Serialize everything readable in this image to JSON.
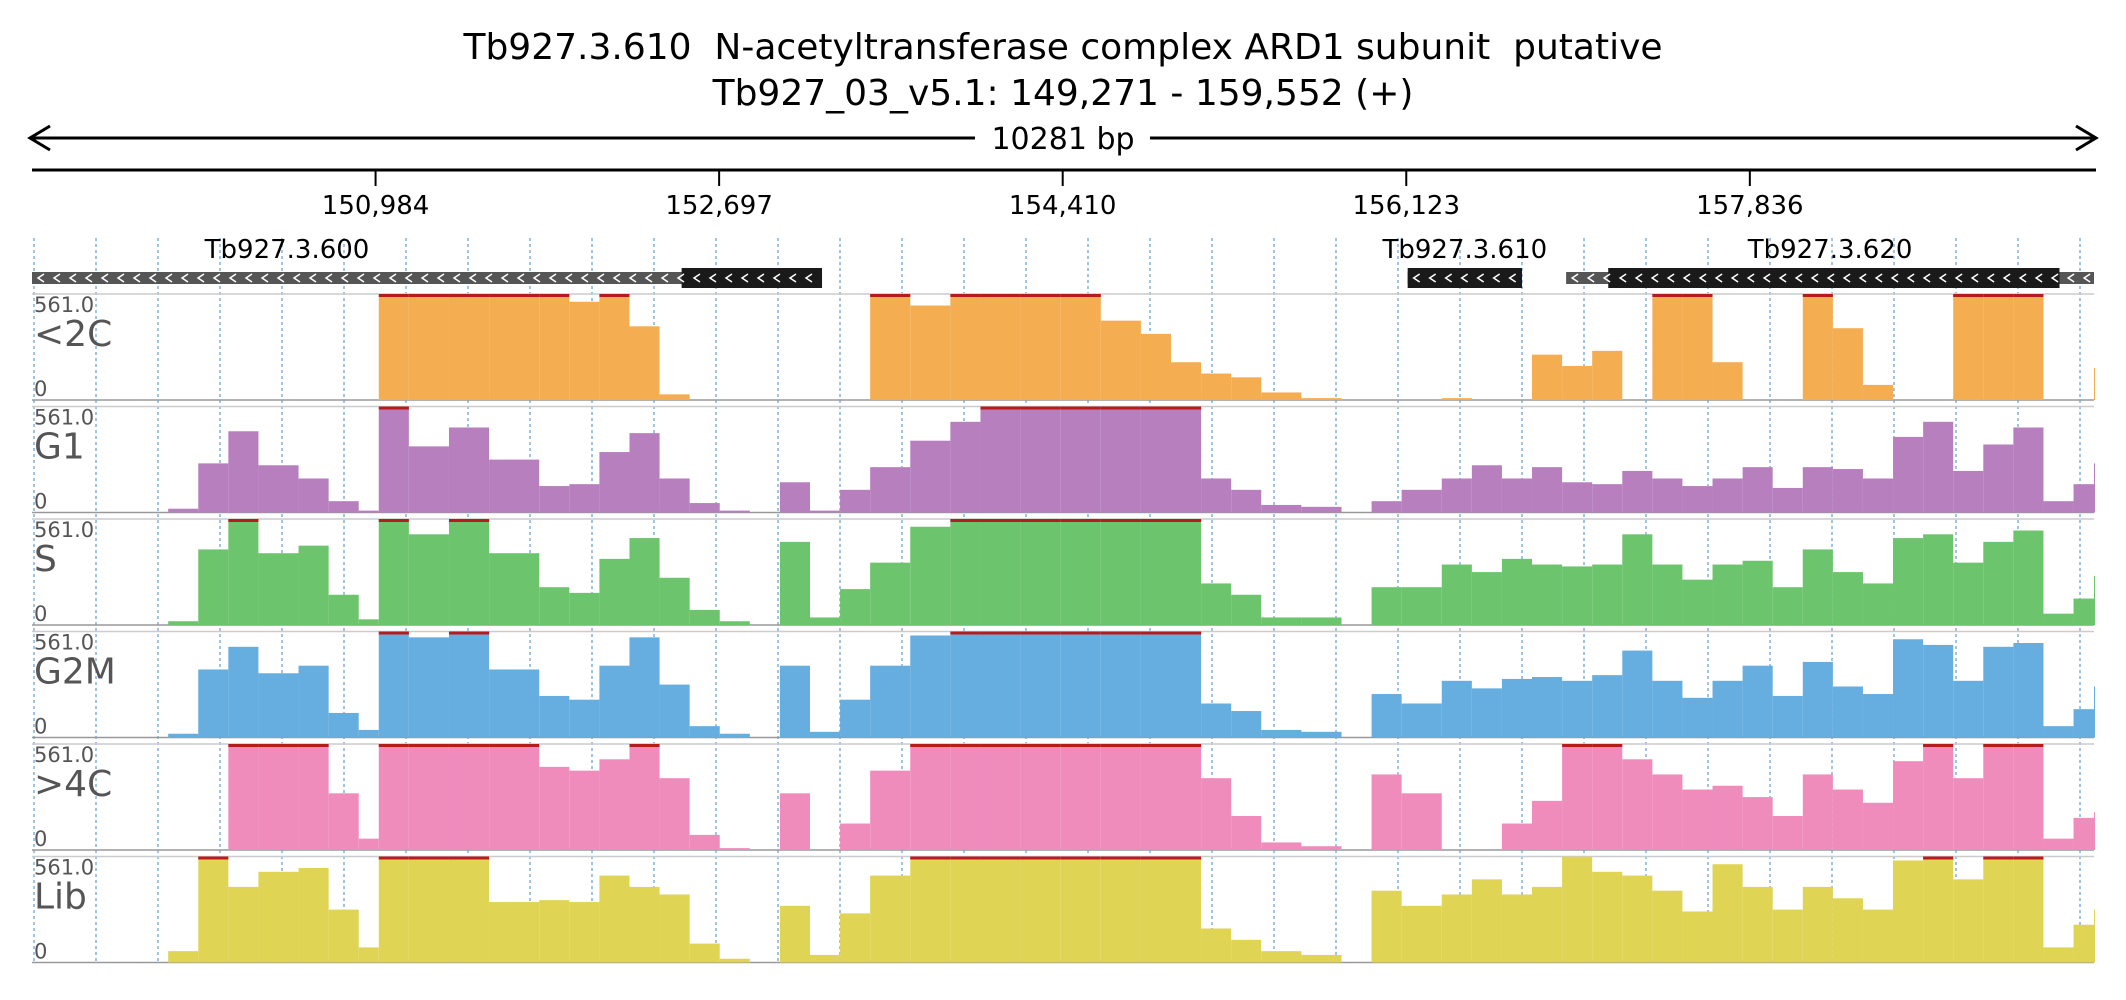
{
  "title": {
    "line1": "Tb927.3.610  N-acetyltransferase complex ARD1 subunit  putative",
    "line2": "Tb927_03_v5.1: 149,271 - 159,552 (+)"
  },
  "span_label": "10281 bp",
  "colors": {
    "<2C": "#f5ad52",
    "G1": "#b87fbf",
    "S": "#6cc46c",
    "G2M": "#66ade0",
    "4C": "#ef8cbc",
    "Lib": "#dfd454",
    "clip": "#b71c1c",
    "gene_body": "#1a1a1a",
    "gene_light": "#555555",
    "grid": "#7fb2e0"
  },
  "chart_data": {
    "type": "area",
    "region": {
      "chrom": "Tb927_03_v5.1",
      "start": 149271,
      "end": 159552,
      "strand": "+"
    },
    "x_ticks": [
      {
        "value": 150984,
        "label": "150,984"
      },
      {
        "value": 152697,
        "label": "152,697"
      },
      {
        "value": 154410,
        "label": "154,410"
      },
      {
        "value": 156123,
        "label": "156,123"
      },
      {
        "value": 157836,
        "label": "157,836"
      }
    ],
    "ylim": [
      0,
      561.0
    ],
    "y_max_label": "561.0",
    "y_min_label": "0",
    "genes": [
      {
        "name": "Tb927.3.600",
        "start": 149271,
        "end": 153210,
        "strand": "-",
        "cds_start": 152510,
        "cds_end": 153210,
        "label": "Tb927.3.600"
      },
      {
        "name": "Tb927.3.610",
        "start": 156130,
        "end": 156700,
        "strand": "-",
        "cds_start": 156130,
        "cds_end": 156700,
        "label": "Tb927.3.610"
      },
      {
        "name": "Tb927.3.620",
        "start": 156920,
        "end": 159552,
        "strand": "-",
        "cds_start": 157130,
        "cds_end": 159380,
        "label": "Tb927.3.620"
      }
    ],
    "x": [
      149271,
      149400,
      149550,
      149700,
      149950,
      150100,
      150250,
      150400,
      150600,
      150750,
      150900,
      151000,
      151150,
      151350,
      151550,
      151800,
      151950,
      152100,
      152250,
      152400,
      152550,
      152700,
      152850,
      153000,
      153150,
      153300,
      153450,
      153650,
      153850,
      154000,
      154200,
      154400,
      154600,
      154800,
      154950,
      155100,
      155250,
      155400,
      155600,
      155800,
      155950,
      156100,
      156300,
      156450,
      156600,
      156750,
      156900,
      157050,
      157200,
      157350,
      157500,
      157650,
      157800,
      157950,
      158100,
      158250,
      158400,
      158550,
      158700,
      158850,
      159000,
      159150,
      159300,
      159450,
      159552
    ],
    "series": [
      {
        "name": "<2C",
        "values": [
          0,
          0,
          0,
          0,
          0,
          0,
          0,
          0,
          0,
          0,
          0,
          561,
          561,
          561,
          561,
          561,
          520,
          561,
          390,
          30,
          0,
          0,
          0,
          0,
          0,
          0,
          561,
          500,
          561,
          561,
          561,
          561,
          420,
          350,
          200,
          140,
          120,
          40,
          10,
          0,
          0,
          0,
          10,
          0,
          0,
          240,
          180,
          260,
          0,
          561,
          561,
          200,
          0,
          0,
          561,
          380,
          80,
          0,
          0,
          561,
          561,
          561,
          0,
          0,
          170
        ]
      },
      {
        "name": "G1",
        "values": [
          0,
          0,
          0,
          0,
          20,
          260,
          430,
          250,
          180,
          60,
          10,
          561,
          350,
          450,
          280,
          140,
          150,
          320,
          420,
          180,
          50,
          10,
          0,
          160,
          10,
          120,
          240,
          380,
          480,
          561,
          561,
          561,
          561,
          561,
          561,
          180,
          120,
          40,
          30,
          0,
          60,
          120,
          180,
          250,
          180,
          240,
          160,
          150,
          220,
          180,
          140,
          180,
          240,
          130,
          240,
          230,
          180,
          400,
          480,
          220,
          360,
          450,
          60,
          150,
          260
        ]
      },
      {
        "name": "S",
        "values": [
          0,
          0,
          0,
          0,
          20,
          400,
          561,
          380,
          420,
          160,
          30,
          561,
          480,
          561,
          380,
          200,
          170,
          350,
          460,
          250,
          80,
          20,
          0,
          440,
          40,
          190,
          330,
          520,
          561,
          561,
          561,
          561,
          561,
          561,
          561,
          220,
          160,
          40,
          40,
          0,
          200,
          200,
          320,
          280,
          350,
          320,
          310,
          320,
          480,
          320,
          240,
          320,
          340,
          200,
          400,
          280,
          220,
          460,
          480,
          330,
          440,
          500,
          60,
          140,
          260
        ]
      },
      {
        "name": "G2M",
        "values": [
          0,
          0,
          0,
          0,
          20,
          360,
          480,
          340,
          380,
          130,
          40,
          561,
          530,
          561,
          360,
          220,
          200,
          380,
          530,
          280,
          60,
          20,
          0,
          380,
          30,
          200,
          380,
          540,
          561,
          561,
          561,
          561,
          561,
          561,
          561,
          180,
          140,
          40,
          30,
          0,
          230,
          180,
          300,
          260,
          310,
          320,
          300,
          330,
          460,
          300,
          210,
          300,
          380,
          220,
          400,
          270,
          230,
          520,
          490,
          300,
          480,
          500,
          60,
          150,
          270
        ]
      },
      {
        "name": ">4C",
        "values": [
          0,
          0,
          0,
          0,
          0,
          0,
          561,
          561,
          561,
          300,
          60,
          561,
          561,
          561,
          561,
          440,
          420,
          480,
          561,
          380,
          80,
          10,
          0,
          300,
          0,
          140,
          420,
          561,
          561,
          561,
          561,
          561,
          561,
          561,
          561,
          380,
          180,
          40,
          20,
          0,
          400,
          300,
          0,
          0,
          140,
          260,
          561,
          561,
          480,
          400,
          320,
          340,
          280,
          180,
          400,
          320,
          250,
          470,
          561,
          380,
          561,
          561,
          60,
          170,
          200
        ]
      },
      {
        "name": "Lib",
        "values": [
          0,
          0,
          0,
          0,
          60,
          561,
          400,
          480,
          500,
          280,
          80,
          561,
          561,
          561,
          320,
          330,
          320,
          460,
          400,
          360,
          100,
          20,
          0,
          300,
          40,
          260,
          460,
          561,
          561,
          561,
          561,
          561,
          561,
          561,
          561,
          180,
          120,
          60,
          40,
          0,
          380,
          300,
          360,
          440,
          360,
          400,
          560,
          480,
          460,
          380,
          270,
          520,
          400,
          280,
          400,
          340,
          280,
          540,
          561,
          440,
          561,
          561,
          80,
          200,
          280
        ]
      }
    ]
  }
}
